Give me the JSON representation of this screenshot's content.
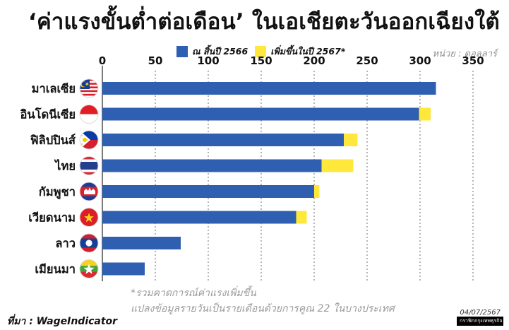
{
  "header": {
    "title": "‘ค่าแรงขั้นต่ำต่อเดือน’ ในเอเชียตะวันออกเฉียงใต้",
    "unit": "หน่วย : ดอลลาร์"
  },
  "legend": [
    {
      "label": "ณ สิ้นปี 2566",
      "color": "#2e5fb0"
    },
    {
      "label": "เพิ่มขึ้นในปี 2567*",
      "color": "#ffe83b"
    }
  ],
  "notes": {
    "line1": "*รวมคาดการณ์ค่าแรงเพิ่มขึ้น",
    "line2": "แปลงข้อมูลรายวันเป็นรายเดือนด้วยการคูณ 22 ในบางประเทศ"
  },
  "source": "ที่มา : WageIndicator",
  "date": "04/07/2567",
  "publisher": {
    "left": "กราฟิก",
    "right": "กรุงเทพธุรกิจ"
  },
  "chart_data": {
    "type": "bar",
    "orientation": "horizontal",
    "stacked": true,
    "title": "‘ค่าแรงขั้นต่ำต่อเดือน’ ในเอเชียตะวันออกเฉียงใต้",
    "xlabel": "",
    "ylabel": "",
    "unit": "หน่วย : ดอลลาร์",
    "x_range": [
      0,
      350
    ],
    "ticks": [
      0,
      50,
      100,
      150,
      200,
      250,
      300,
      350
    ],
    "grid": true,
    "legend_position": "top",
    "categories": [
      "มาเลเซีย",
      "อินโดนีเซีย",
      "ฟิลิปปินส์",
      "ไทย",
      "กัมพูชา",
      "เวียดนาม",
      "ลาว",
      "เมียนมา"
    ],
    "series": [
      {
        "name": "ณ สิ้นปี 2566",
        "color": "#2e5fb0",
        "values": [
          315,
          299,
          228,
          207,
          200,
          183,
          74,
          40
        ]
      },
      {
        "name": "เพิ่มขึ้นในปี 2567*",
        "color": "#ffe83b",
        "values": [
          0,
          11,
          13,
          30,
          5,
          10,
          0,
          0
        ]
      }
    ],
    "flags": [
      "malaysia-flag-icon",
      "indonesia-flag-icon",
      "philippines-flag-icon",
      "thailand-flag-icon",
      "cambodia-flag-icon",
      "vietnam-flag-icon",
      "laos-flag-icon",
      "myanmar-flag-icon"
    ]
  }
}
